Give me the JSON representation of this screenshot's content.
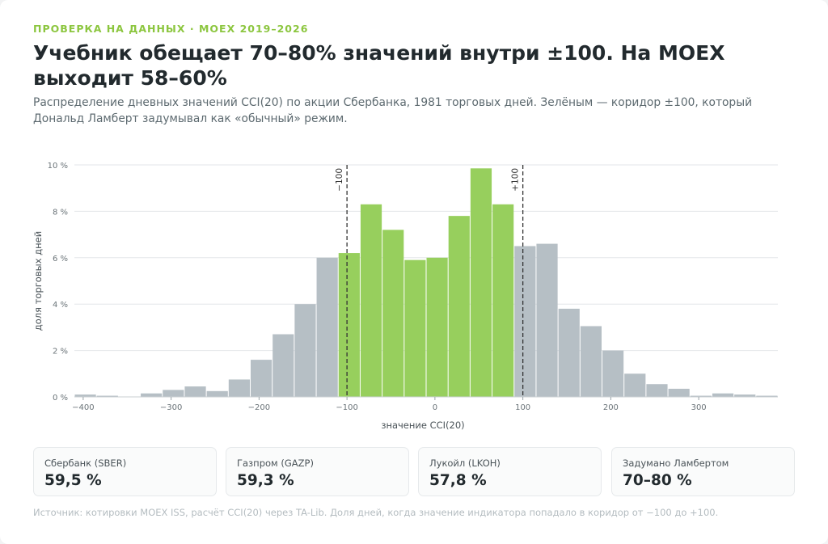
{
  "header": {
    "eyebrow": "ПРОВЕРКА НА ДАННЫХ · MOEX 2019–2026",
    "title": "Учебник обещает 70–80% значений внутри ±100. На MOEX выходит 58–60%",
    "subtitle": "Распределение дневных значений CCI(20) по акции Сбербанка, 1981 торговых дней. Зелёным — коридор ±100, который Дональд Ламберт задумывал как «обычный» режим."
  },
  "chart_data": {
    "type": "bar",
    "xlabel": "значение CCI(20)",
    "ylabel": "доля торговых дней",
    "xlim": [
      -410,
      390
    ],
    "ylim": [
      0,
      10
    ],
    "x_ticks": [
      -400,
      -300,
      -200,
      -100,
      0,
      100,
      200,
      300
    ],
    "x_tick_labels": [
      "−400",
      "−300",
      "−200",
      "−100",
      "0",
      "100",
      "200",
      "300"
    ],
    "y_ticks": [
      0,
      2,
      4,
      6,
      8,
      10
    ],
    "y_tick_labels": [
      "0 %",
      "2 %",
      "4 %",
      "6 %",
      "8 %",
      "10 %"
    ],
    "grid": true,
    "bin_width": 25,
    "bin_start": -410,
    "values": [
      0.1,
      0.05,
      0,
      0.15,
      0.3,
      0.45,
      0.25,
      0.75,
      1.6,
      2.7,
      4.0,
      6.0,
      6.2,
      8.3,
      7.2,
      5.9,
      6.0,
      7.8,
      9.85,
      8.3,
      6.5,
      6.6,
      3.8,
      3.05,
      2.0,
      1.0,
      0.55,
      0.35,
      0.05,
      0.15,
      0.1,
      0.05
    ],
    "highlight_bins": [
      12,
      19
    ],
    "markers": [
      {
        "x": -100,
        "label": "−100"
      },
      {
        "x": 100,
        "label": "+100"
      }
    ],
    "colors": {
      "highlight": "#97cf5d",
      "normal": "#b6bfc5",
      "grid": "#e3e6e8",
      "marker": "#333333",
      "tick": "#6b7479"
    }
  },
  "stats": [
    {
      "label": "Сбербанк (SBER)",
      "value": "59,5 %"
    },
    {
      "label": "Газпром (GAZP)",
      "value": "59,3 %"
    },
    {
      "label": "Лукойл (LKOH)",
      "value": "57,8 %"
    },
    {
      "label": "Задумано Ламбертом",
      "value": "70–80 %"
    }
  ],
  "footer": {
    "source": "Источник: котировки MOEX ISS, расчёт CCI(20) через TA-Lib. Доля дней, когда значение индикатора попадало в коридор от −100 до +100."
  }
}
